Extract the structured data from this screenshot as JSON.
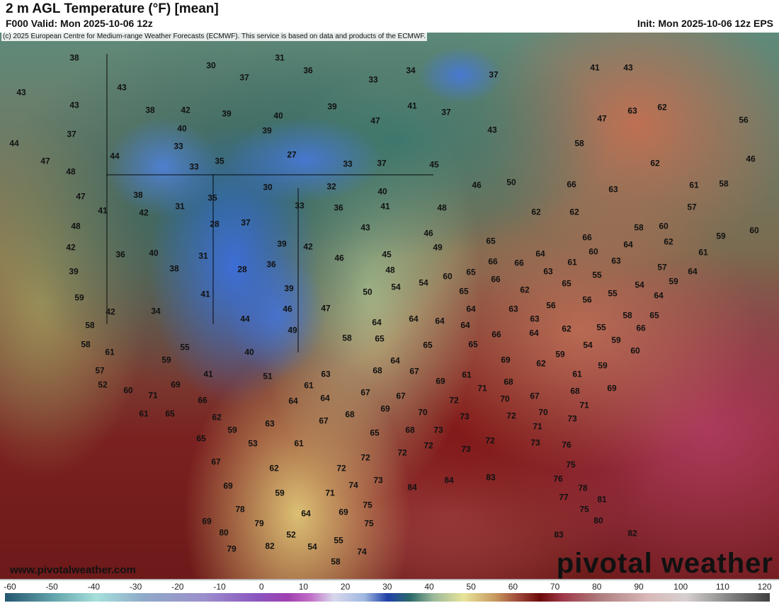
{
  "header": {
    "title": "2 m AGL Temperature (°F) [mean]",
    "valid": "F000 Valid: Mon 2025-10-06 12z",
    "init": "Init: Mon 2025-10-06 12z EPS"
  },
  "map": {
    "copyright": "(c) 2025 European Centre for Medium-range Weather Forecasts (ECMWF). This service is based on data and products of the ECMWF.",
    "website": "www.pivotalweather.com",
    "logo": "pivotal weather",
    "units": "°F",
    "station_values": [
      38,
      31,
      30,
      36,
      34,
      37,
      41,
      43,
      43,
      43,
      37,
      33,
      43,
      38,
      42,
      39,
      40,
      39,
      41,
      37,
      63,
      62,
      56,
      37,
      40,
      39,
      47,
      43,
      47,
      44,
      33,
      58,
      44,
      47,
      35,
      27,
      33,
      37,
      45,
      62,
      46,
      48,
      33,
      47,
      38,
      35,
      30,
      32,
      40,
      46,
      50,
      66,
      63,
      61,
      58,
      41,
      42,
      31,
      33,
      36,
      41,
      48,
      62,
      62,
      57,
      48,
      28,
      37,
      43,
      46,
      58,
      60,
      59,
      60,
      42,
      36,
      40,
      31,
      39,
      42,
      46,
      45,
      49,
      65,
      64,
      66,
      60,
      64,
      62,
      61,
      39,
      38,
      28,
      36,
      48,
      65,
      66,
      66,
      61,
      63,
      57,
      64,
      59,
      41,
      39,
      50,
      54,
      54,
      60,
      65,
      66,
      63,
      65,
      55,
      55,
      54,
      59,
      64,
      42,
      34,
      46,
      47,
      64,
      63,
      62,
      56,
      56,
      58,
      65,
      58,
      44,
      49,
      58,
      64,
      64,
      64,
      64,
      63,
      64,
      62,
      55,
      66,
      58,
      55,
      65,
      65,
      65,
      66,
      54,
      59,
      60,
      61,
      59,
      40,
      64,
      69,
      59,
      62,
      57,
      41,
      51,
      63,
      68,
      67,
      61,
      69,
      61,
      59,
      52,
      69,
      60,
      71,
      61,
      67,
      67,
      71,
      68,
      68,
      69,
      66,
      64,
      64,
      69,
      72,
      70,
      67,
      71,
      61,
      65,
      62,
      70,
      73,
      72,
      70,
      73,
      59,
      63,
      67,
      68,
      65,
      68,
      73,
      71,
      65,
      53,
      61,
      72,
      72,
      73,
      72,
      73,
      76,
      67,
      62,
      72,
      72,
      75,
      69,
      59,
      71,
      74,
      73,
      84,
      84,
      83,
      76,
      78,
      78,
      64,
      69,
      75,
      77,
      81,
      75,
      69,
      79,
      80,
      52,
      75,
      80,
      82,
      79,
      82,
      54,
      55,
      74,
      83,
      58
    ]
  },
  "colorbar": {
    "ticks": [
      "-60",
      "-50",
      "-40",
      "-30",
      "-20",
      "-10",
      "0",
      "10",
      "20",
      "30",
      "40",
      "50",
      "60",
      "70",
      "80",
      "90",
      "100",
      "110",
      "120"
    ]
  }
}
